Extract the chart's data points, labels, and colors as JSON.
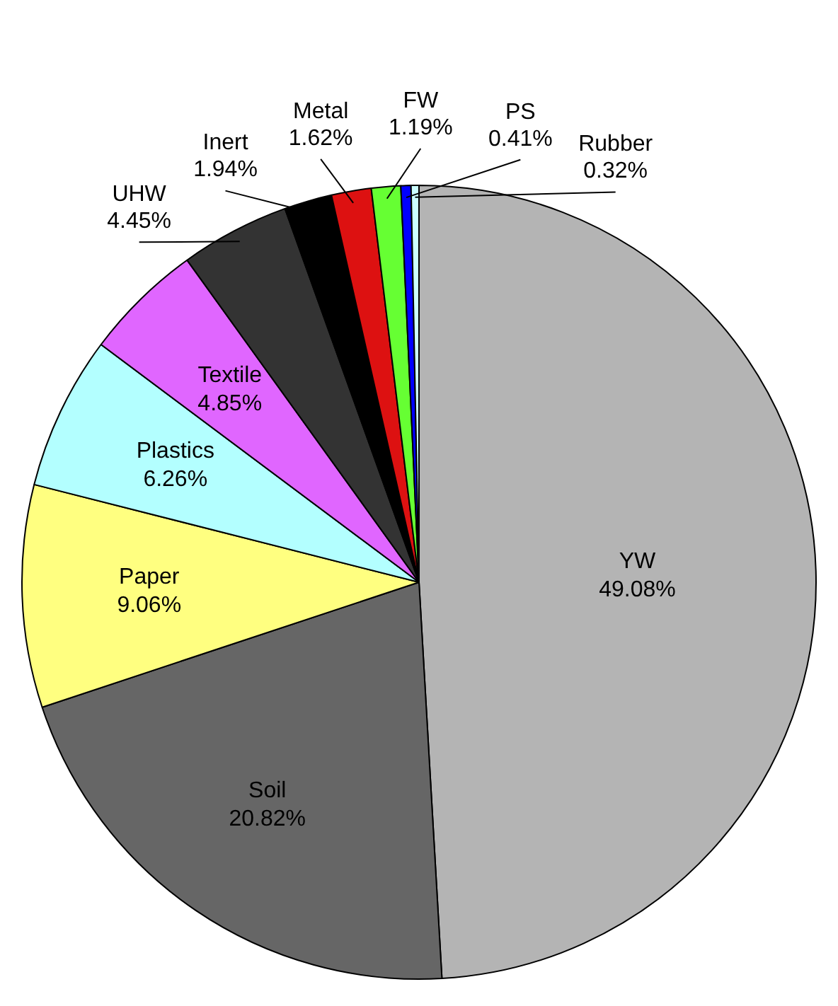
{
  "chart_data": {
    "type": "pie",
    "categories": [
      "YW",
      "Soil",
      "Paper",
      "Plastics",
      "Textile",
      "UHW",
      "Inert",
      "Metal",
      "FW",
      "PS",
      "Rubber"
    ],
    "values": [
      49.08,
      20.82,
      9.06,
      6.26,
      4.85,
      4.45,
      1.94,
      1.62,
      1.19,
      0.41,
      0.32
    ],
    "value_labels": [
      "49.08%",
      "20.82%",
      "9.06%",
      "6.26%",
      "4.85%",
      "4.45%",
      "1.94%",
      "1.62%",
      "1.19%",
      "0.41%",
      "0.32%"
    ],
    "colors": [
      "#b4b4b4",
      "#666666",
      "#ffff80",
      "#b3ffff",
      "#e066ff",
      "#333333",
      "#000000",
      "#dd1111",
      "#66ff33",
      "#0000ff",
      "#ccffff"
    ]
  }
}
